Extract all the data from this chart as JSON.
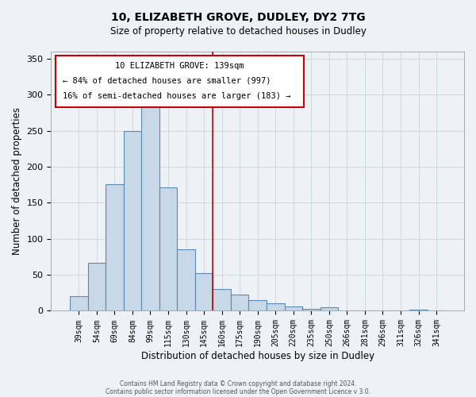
{
  "title1": "10, ELIZABETH GROVE, DUDLEY, DY2 7TG",
  "title2": "Size of property relative to detached houses in Dudley",
  "xlabel": "Distribution of detached houses by size in Dudley",
  "ylabel": "Number of detached properties",
  "footer1": "Contains HM Land Registry data © Crown copyright and database right 2024.",
  "footer2": "Contains public sector information licensed under the Open Government Licence v 3.0.",
  "annotation_line1": "10 ELIZABETH GROVE: 139sqm",
  "annotation_line2": "← 84% of detached houses are smaller (997)",
  "annotation_line3": "16% of semi-detached houses are larger (183) →",
  "bar_labels": [
    "39sqm",
    "54sqm",
    "69sqm",
    "84sqm",
    "99sqm",
    "115sqm",
    "130sqm",
    "145sqm",
    "160sqm",
    "175sqm",
    "190sqm",
    "205sqm",
    "220sqm",
    "235sqm",
    "250sqm",
    "266sqm",
    "281sqm",
    "296sqm",
    "311sqm",
    "326sqm",
    "341sqm"
  ],
  "bar_values": [
    20,
    67,
    176,
    250,
    283,
    171,
    85,
    52,
    30,
    23,
    15,
    10,
    6,
    3,
    5,
    1,
    0,
    0,
    0,
    2,
    0
  ],
  "bar_color": "#c8d8e8",
  "bar_edge_color": "#5a8ab0",
  "vline_x": 7.5,
  "vline_color": "#cc0000",
  "grid_color": "#d0d8e0",
  "bg_color": "#eef2f6",
  "box_color": "#cc0000",
  "ylim": [
    0,
    360
  ],
  "yticks": [
    0,
    50,
    100,
    150,
    200,
    250,
    300,
    350
  ]
}
